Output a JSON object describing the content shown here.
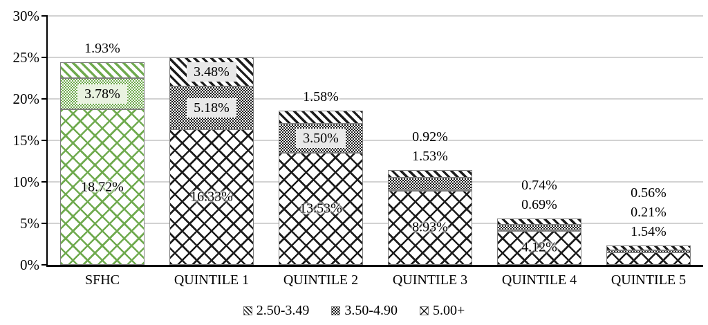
{
  "chart_data": {
    "type": "bar",
    "stacked": true,
    "title": "",
    "xlabel": "",
    "ylabel": "",
    "categories": [
      "SFHC",
      "QUINTILE 1",
      "QUINTILE 2",
      "QUINTILE 3",
      "QUINTILE 4",
      "QUINTILE 5"
    ],
    "series": [
      {
        "name": "2.50-3.49",
        "pattern": "diagonal-stripes",
        "values": [
          1.93,
          3.48,
          1.58,
          0.92,
          0.74,
          0.56
        ],
        "label_placement": [
          "out",
          "box",
          "out",
          "out",
          "out",
          "out"
        ]
      },
      {
        "name": "3.50-4.90",
        "pattern": "checkerboard",
        "values": [
          3.78,
          5.18,
          3.5,
          1.53,
          0.69,
          0.21
        ],
        "label_placement": [
          "box",
          "box",
          "box",
          "out",
          "out",
          "out"
        ]
      },
      {
        "name": "5.00+",
        "pattern": "crosshatch",
        "values": [
          18.72,
          16.33,
          13.53,
          8.93,
          4.12,
          1.54
        ],
        "label_placement": [
          "in",
          "in",
          "in",
          "in",
          "in",
          "out"
        ]
      }
    ],
    "stack_order_bottom_to_top": [
      "5.00+",
      "3.50-4.90",
      "2.50-3.49"
    ],
    "data_label_format": "0.00%",
    "y_axis": {
      "min": 0,
      "max": 30,
      "step": 5,
      "tick_labels": [
        "0%",
        "5%",
        "10%",
        "15%",
        "20%",
        "25%",
        "30%"
      ],
      "gridlines": true
    },
    "legend": {
      "position": "bottom",
      "items": [
        "2.50-3.49",
        "3.50-4.90",
        "5.00+"
      ]
    }
  },
  "colors": {
    "sfhc_pattern": "#6faa4e",
    "quintile_pattern": "#1c1c1c",
    "sfhc_label_box_bg": "#e9f2e0",
    "quintile_label_box_bg": "#e8e8e8",
    "gridline": "#d2d2d2",
    "axis": "#000000",
    "bar_border": "#7f7f7f"
  }
}
